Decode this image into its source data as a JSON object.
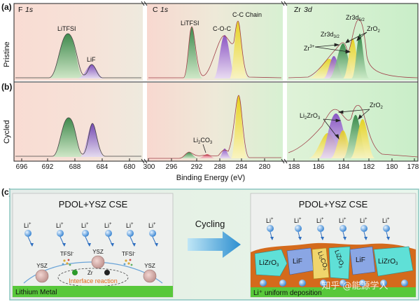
{
  "panel_a_label": "(a)",
  "panel_b_label": "(b)",
  "panel_c_label": "(c)",
  "row_labels": {
    "pristine": "Pristine",
    "cycled": "Cycled"
  },
  "region_titles": {
    "f": {
      "el": "F",
      "orb": "1s"
    },
    "c": {
      "el": "C",
      "orb": "1s"
    },
    "zr": {
      "el": "Zr",
      "orb": "3d"
    }
  },
  "annotations_a": {
    "f_litfsi": "LiTFSI",
    "f_lif": "LiF",
    "c_litfsi": "LiTFSI",
    "c_coc": "C-O-C",
    "c_cc": "C-C Chain",
    "zr_3d52_main": "Zr3d",
    "zr_3d52_sub": "5/2",
    "zr_3d32_main": "Zr3d",
    "zr_3d32_sub": "3/2",
    "zr_zro2": "ZrO",
    "zr_zro2_sub": "2",
    "zr_zr3": "Zr",
    "zr_zr3_sup": "3+"
  },
  "annotations_b": {
    "c_li2co3_a": "Li",
    "c_li2co3_b": "2",
    "c_li2co3_c": "CO",
    "c_li2co3_d": "3",
    "zr_li2zro3_a": "Li",
    "zr_li2zro3_b": "2",
    "zr_li2zro3_c": "ZrO",
    "zr_li2zro3_d": "3",
    "zr_zro2": "ZrO",
    "zr_zro2_sub": "2"
  },
  "x_axis": {
    "label": "Binding Energy (eV)",
    "f_ticks": [
      "696",
      "692",
      "688",
      "684",
      "680"
    ],
    "c_ticks": [
      "300",
      "296",
      "292",
      "288",
      "284",
      "280"
    ],
    "zr_ticks": [
      "188",
      "186",
      "184",
      "182",
      "180",
      "178"
    ]
  },
  "schematic": {
    "left_title": "PDOL+YSZ CSE",
    "right_title": "PDOL+YSZ CSE",
    "arrow_label": "Cycling",
    "li_ion": "Li",
    "li_sup": "+",
    "ysz": "YSZ",
    "tfsi": "TFSI",
    "tfsi_sup": "-",
    "zr_ion": "Zr",
    "interface_reaction": "Interface reaction",
    "lithium_metal": "Lithium Metal",
    "right_bottom": "Li⁺ uniform deposition",
    "sei_lizro_main": "LiZrO",
    "sei_lizro_sub": "3",
    "sei_lif": "LiF",
    "sei_li2co3": "Li₂CO₃",
    "watermark": "知乎 @能源学人"
  },
  "colors": {
    "lif_green": "#2e8b3e",
    "lif_purple": "#8e4fc7",
    "c_yellow": "#e8d21a",
    "bg_pink": "#f7d8d0",
    "bg_green": "#d8f0d2",
    "lithium_green": "#5ccf3c",
    "sei_orange": "#d46a1c",
    "cyan_flake": "#5fe0d7"
  }
}
